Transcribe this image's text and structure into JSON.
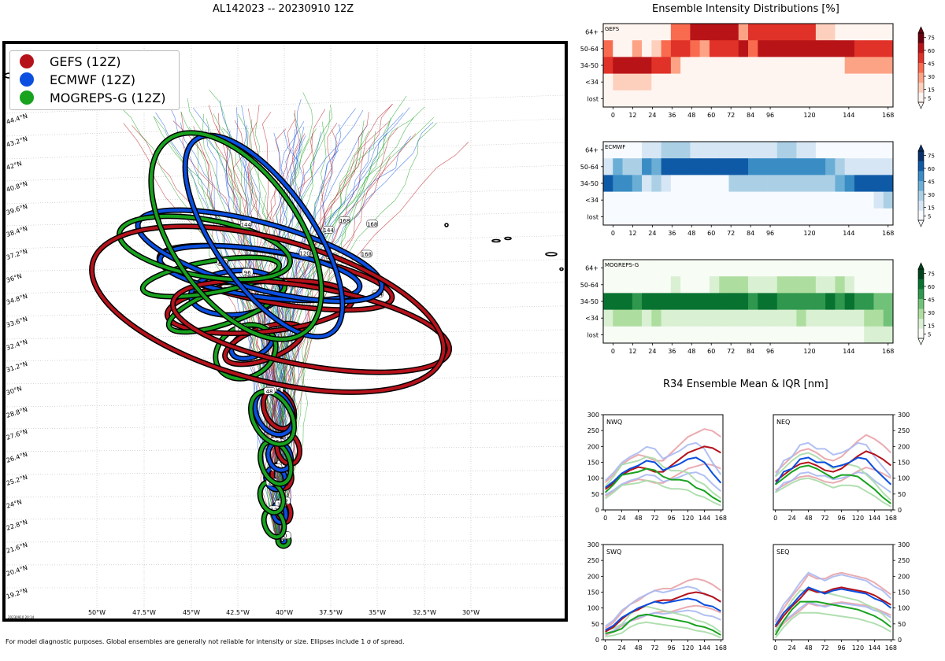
{
  "header": {
    "map_title": "AL142023 -- 20230910 12Z",
    "intensity_title": "Ensemble Intensity Distributions [%]",
    "r34_title": "R34 Ensemble Mean & IQR [nm]",
    "footnote": "For model diagnostic purposes. Global ensembles are generally not reliable for intensity or size. Ellipses include 1 σ of spread.",
    "stamp": "20230910 20:14"
  },
  "legend": {
    "items": [
      {
        "label": "GEFS (12Z)",
        "color": "#b5121b"
      },
      {
        "label": "ECMWF (12Z)",
        "color": "#0a4fe0"
      },
      {
        "label": "MOGREPS-G (12Z)",
        "color": "#18a21e"
      }
    ]
  },
  "map": {
    "lat_labels": [
      "19.2°N",
      "20.4°N",
      "21.6°N",
      "22.8°N",
      "24°N",
      "25.2°N",
      "26.4°N",
      "27.6°N",
      "28.8°N",
      "30°N",
      "31.2°N",
      "32.4°N",
      "33.6°N",
      "34.8°N",
      "36°N",
      "37.2°N",
      "38.4°N",
      "39.6°N",
      "40.8°N",
      "42°N",
      "43.2°N",
      "44.4°N"
    ],
    "lon_labels": [
      "50°W",
      "47.5°W",
      "45°W",
      "42.5°W",
      "40°W",
      "37.5°W",
      "35°W",
      "32.5°W",
      "30°W"
    ],
    "colors": {
      "gefs": "#b5121b",
      "ecmwf": "#0a4fe0",
      "mogreps": "#18a21e"
    }
  },
  "chart_data": [
    {
      "type": "heatmap",
      "title": "GEFS",
      "colormap": "Reds",
      "ylabels": [
        "64+",
        "50-64",
        "34-50",
        "<34",
        "lost"
      ],
      "xticks": [
        0,
        12,
        24,
        36,
        48,
        60,
        72,
        84,
        96,
        120,
        144,
        168
      ],
      "xlim": [
        -6,
        171
      ],
      "rows": [
        [
          0,
          0,
          0,
          0,
          0,
          0,
          0,
          40,
          40,
          70,
          70,
          70,
          65,
          65,
          30,
          60,
          60,
          60,
          60,
          60,
          60,
          60,
          15,
          15,
          0,
          0,
          0,
          0,
          0,
          0
        ],
        [
          45,
          0,
          0,
          20,
          0,
          10,
          40,
          60,
          60,
          45,
          30,
          50,
          50,
          50,
          65,
          40,
          65,
          65,
          65,
          65,
          65,
          65,
          65,
          65,
          65,
          65,
          60,
          50,
          50,
          50
        ],
        [
          50,
          80,
          80,
          80,
          80,
          60,
          50,
          25,
          0,
          0,
          0,
          0,
          0,
          0,
          0,
          0,
          0,
          0,
          0,
          0,
          0,
          0,
          0,
          0,
          0,
          25,
          25,
          25,
          25,
          20
        ],
        [
          0,
          15,
          15,
          15,
          15,
          0,
          0,
          0,
          0,
          0,
          0,
          0,
          0,
          0,
          0,
          0,
          0,
          0,
          0,
          0,
          0,
          0,
          0,
          0,
          0,
          0,
          0,
          0,
          0,
          0
        ],
        [
          0,
          0,
          0,
          0,
          0,
          0,
          0,
          0,
          0,
          0,
          0,
          0,
          0,
          0,
          0,
          0,
          0,
          0,
          0,
          0,
          0,
          0,
          0,
          0,
          0,
          0,
          0,
          0,
          0,
          0
        ]
      ],
      "colorbar_ticks": [
        5,
        15,
        30,
        45,
        60,
        75
      ]
    },
    {
      "type": "heatmap",
      "title": "ECMWF",
      "colormap": "Blues",
      "ylabels": [
        "64+",
        "50-64",
        "34-50",
        "<34",
        "lost"
      ],
      "xticks": [
        0,
        12,
        24,
        36,
        48,
        60,
        72,
        84,
        96,
        120,
        144,
        168
      ],
      "xlim": [
        -6,
        171
      ],
      "rows": [
        [
          0,
          0,
          0,
          0,
          10,
          10,
          20,
          20,
          25,
          10,
          10,
          10,
          10,
          10,
          10,
          10,
          10,
          10,
          20,
          20,
          10,
          10,
          0,
          0,
          0,
          0,
          0,
          0,
          0,
          0
        ],
        [
          15,
          45,
          30,
          30,
          50,
          40,
          65,
          65,
          65,
          75,
          75,
          75,
          75,
          75,
          75,
          60,
          60,
          60,
          60,
          60,
          60,
          60,
          60,
          45,
          30,
          15,
          15,
          15,
          15,
          10
        ],
        [
          75,
          60,
          50,
          40,
          15,
          30,
          15,
          0,
          0,
          5,
          0,
          0,
          0,
          20,
          20,
          20,
          20,
          20,
          20,
          20,
          20,
          20,
          20,
          30,
          45,
          60,
          75,
          75,
          75,
          65
        ],
        [
          0,
          0,
          0,
          0,
          0,
          0,
          0,
          0,
          0,
          0,
          0,
          0,
          0,
          0,
          0,
          0,
          0,
          0,
          0,
          0,
          0,
          0,
          0,
          0,
          0,
          0,
          0,
          0,
          15,
          20
        ],
        [
          0,
          0,
          0,
          0,
          0,
          0,
          0,
          0,
          0,
          0,
          0,
          0,
          0,
          0,
          0,
          0,
          0,
          0,
          0,
          0,
          0,
          0,
          0,
          0,
          0,
          0,
          0,
          0,
          0,
          0
        ]
      ],
      "colorbar_ticks": [
        5,
        15,
        30,
        45,
        60,
        75
      ]
    },
    {
      "type": "heatmap",
      "title": "MOGREPS-G",
      "colormap": "Greens",
      "ylabels": [
        "64+",
        "50-64",
        "34-50",
        "<34",
        "lost"
      ],
      "xticks": [
        0,
        12,
        24,
        36,
        48,
        60,
        72,
        84,
        96,
        120,
        144,
        168
      ],
      "xlim": [
        -6,
        171
      ],
      "rows": [
        [
          0,
          0,
          0,
          0,
          0,
          0,
          0,
          0,
          0,
          0,
          0,
          0,
          0,
          0,
          0,
          0,
          0,
          0,
          0,
          0,
          0,
          0,
          0,
          0,
          0,
          0,
          0,
          0,
          0,
          0
        ],
        [
          0,
          0,
          0,
          0,
          0,
          0,
          0,
          10,
          0,
          0,
          0,
          10,
          20,
          20,
          20,
          10,
          10,
          10,
          20,
          20,
          20,
          20,
          10,
          10,
          20,
          10,
          0,
          0,
          0,
          0
        ],
        [
          75,
          75,
          75,
          60,
          75,
          75,
          75,
          75,
          75,
          75,
          75,
          75,
          75,
          75,
          75,
          60,
          75,
          75,
          60,
          60,
          60,
          60,
          60,
          75,
          60,
          75,
          60,
          60,
          45,
          40
        ],
        [
          15,
          20,
          30,
          30,
          15,
          30,
          15,
          15,
          15,
          15,
          15,
          15,
          15,
          15,
          15,
          15,
          15,
          15,
          15,
          15,
          20,
          15,
          15,
          15,
          15,
          15,
          15,
          25,
          30,
          40
        ],
        [
          0,
          0,
          0,
          0,
          0,
          0,
          0,
          0,
          0,
          0,
          0,
          0,
          0,
          0,
          0,
          0,
          0,
          0,
          0,
          0,
          0,
          0,
          0,
          0,
          0,
          0,
          0,
          10,
          10,
          10
        ]
      ],
      "colorbar_ticks": [
        5,
        15,
        30,
        45,
        60,
        75
      ]
    },
    {
      "type": "line",
      "title": "NWQ",
      "x": [
        0,
        12,
        24,
        36,
        48,
        60,
        72,
        84,
        96,
        108,
        120,
        132,
        144,
        156,
        168
      ],
      "xticks": [
        0,
        24,
        48,
        72,
        96,
        120,
        144,
        168
      ],
      "ylim": [
        0,
        300
      ],
      "yticks": [
        0,
        50,
        100,
        150,
        200,
        250,
        300
      ],
      "series": [
        {
          "name": "GEFS mean",
          "color": "#b5121b",
          "values": [
            65,
            85,
            110,
            125,
            135,
            130,
            120,
            120,
            140,
            160,
            180,
            190,
            200,
            195,
            180
          ]
        },
        {
          "name": "ECMWF mean",
          "color": "#0a4fe0",
          "values": [
            70,
            90,
            115,
            130,
            140,
            155,
            150,
            125,
            135,
            145,
            160,
            165,
            150,
            115,
            85
          ]
        },
        {
          "name": "MOGREPS-G mean",
          "color": "#18a21e",
          "values": [
            55,
            80,
            110,
            115,
            120,
            130,
            125,
            105,
            95,
            95,
            90,
            70,
            60,
            40,
            25
          ]
        }
      ]
    },
    {
      "type": "line",
      "title": "NEQ",
      "x": [
        0,
        12,
        24,
        36,
        48,
        60,
        72,
        84,
        96,
        108,
        120,
        132,
        144,
        156,
        168
      ],
      "xticks": [
        0,
        24,
        48,
        72,
        96,
        120,
        144,
        168
      ],
      "ylim": [
        0,
        300
      ],
      "yticks": [
        0,
        50,
        100,
        150,
        200,
        250,
        300
      ],
      "series": [
        {
          "name": "GEFS mean",
          "color": "#b5121b",
          "values": [
            90,
            110,
            130,
            145,
            150,
            140,
            125,
            120,
            130,
            150,
            170,
            185,
            175,
            160,
            140
          ]
        },
        {
          "name": "ECMWF mean",
          "color": "#0a4fe0",
          "values": [
            80,
            120,
            130,
            160,
            165,
            150,
            150,
            135,
            140,
            150,
            165,
            160,
            130,
            105,
            80
          ]
        },
        {
          "name": "MOGREPS-G mean",
          "color": "#18a21e",
          "values": [
            80,
            100,
            120,
            135,
            140,
            130,
            115,
            100,
            110,
            110,
            105,
            85,
            65,
            40,
            20
          ]
        }
      ]
    },
    {
      "type": "line",
      "title": "SWQ",
      "x": [
        0,
        12,
        24,
        36,
        48,
        60,
        72,
        84,
        96,
        108,
        120,
        132,
        144,
        156,
        168
      ],
      "xticks": [
        0,
        24,
        48,
        72,
        96,
        120,
        144,
        168
      ],
      "ylim": [
        0,
        300
      ],
      "yticks": [
        0,
        50,
        100,
        150,
        200,
        250,
        300
      ],
      "series": [
        {
          "name": "GEFS mean",
          "color": "#b5121b",
          "values": [
            25,
            40,
            65,
            85,
            95,
            110,
            120,
            125,
            125,
            135,
            145,
            150,
            145,
            135,
            120
          ]
        },
        {
          "name": "ECMWF mean",
          "color": "#0a4fe0",
          "values": [
            30,
            45,
            70,
            85,
            100,
            110,
            120,
            115,
            120,
            125,
            130,
            125,
            110,
            105,
            90
          ]
        },
        {
          "name": "MOGREPS-G mean",
          "color": "#18a21e",
          "values": [
            20,
            25,
            35,
            60,
            75,
            80,
            75,
            70,
            65,
            60,
            55,
            45,
            40,
            30,
            15
          ]
        }
      ]
    },
    {
      "type": "line",
      "title": "SEQ",
      "x": [
        0,
        12,
        24,
        36,
        48,
        60,
        72,
        84,
        96,
        108,
        120,
        132,
        144,
        156,
        168
      ],
      "xticks": [
        0,
        24,
        48,
        72,
        96,
        120,
        144,
        168
      ],
      "ylim": [
        0,
        300
      ],
      "yticks": [
        0,
        50,
        100,
        150,
        200,
        250,
        300
      ],
      "series": [
        {
          "name": "GEFS mean",
          "color": "#b5121b",
          "values": [
            40,
            75,
            105,
            130,
            160,
            150,
            150,
            160,
            165,
            160,
            155,
            150,
            140,
            125,
            110
          ]
        },
        {
          "name": "ECMWF mean",
          "color": "#0a4fe0",
          "values": [
            45,
            85,
            110,
            140,
            165,
            155,
            145,
            155,
            160,
            155,
            150,
            145,
            130,
            120,
            100
          ]
        },
        {
          "name": "MOGREPS-G mean",
          "color": "#18a21e",
          "values": [
            15,
            60,
            95,
            120,
            120,
            120,
            115,
            110,
            105,
            100,
            95,
            85,
            75,
            60,
            40
          ]
        }
      ]
    }
  ]
}
